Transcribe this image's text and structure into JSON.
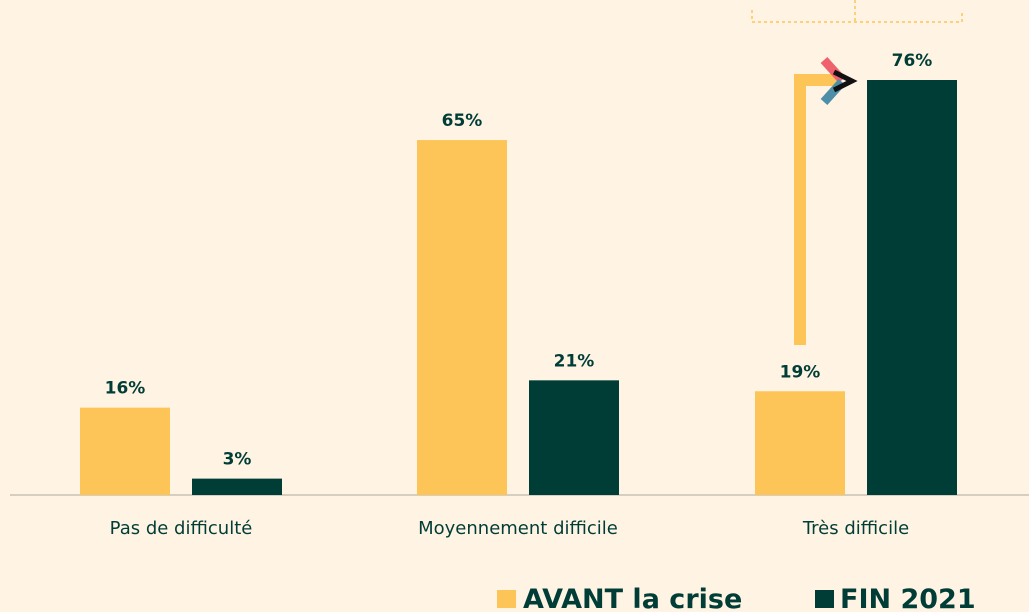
{
  "chart_data": {
    "type": "bar",
    "categories": [
      "Pas de difficulté",
      "Moyennement difficile",
      "Très difficile"
    ],
    "series": [
      {
        "name": "AVANT la crise",
        "color": "#fdc457",
        "values": [
          16,
          65,
          19
        ],
        "value_labels": [
          "16%",
          "65%",
          "19%"
        ]
      },
      {
        "name": "FIN 2021",
        "color": "#003d37",
        "values": [
          3,
          21,
          76
        ],
        "value_labels": [
          "3%",
          "21%",
          "76%"
        ]
      }
    ]
  }
}
